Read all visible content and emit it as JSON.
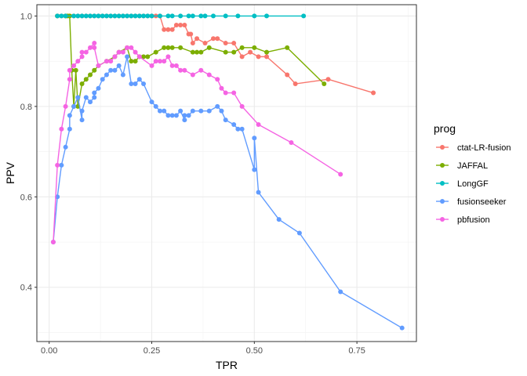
{
  "chart_data": {
    "type": "line",
    "title": "",
    "xlabel": "TPR",
    "ylabel": "PPV",
    "xlim": [
      -0.03,
      0.895
    ],
    "ylim": [
      0.28,
      1.025
    ],
    "x_ticks": [
      0,
      0.25,
      0.5,
      0.75
    ],
    "x_tick_labels": [
      "0.00",
      "0.25",
      "0.50",
      "0.75"
    ],
    "y_ticks": [
      0.4,
      0.6,
      0.8,
      1.0
    ],
    "y_tick_labels": [
      "0.4",
      "0.6",
      "0.8",
      "1.0"
    ],
    "grid": true,
    "legend_title": "prog",
    "legend_position": "right",
    "series": [
      {
        "name": "ctat-LR-fusion",
        "color": "#F8766D",
        "x": [
          0.02,
          0.03,
          0.04,
          0.05,
          0.06,
          0.07,
          0.08,
          0.09,
          0.1,
          0.11,
          0.12,
          0.13,
          0.14,
          0.15,
          0.16,
          0.17,
          0.18,
          0.19,
          0.2,
          0.21,
          0.22,
          0.23,
          0.24,
          0.25,
          0.26,
          0.27,
          0.28,
          0.29,
          0.3,
          0.31,
          0.32,
          0.33,
          0.34,
          0.345,
          0.35,
          0.36,
          0.38,
          0.4,
          0.41,
          0.43,
          0.45,
          0.47,
          0.49,
          0.51,
          0.53,
          0.58,
          0.6,
          0.68,
          0.79
        ],
        "y": [
          1.0,
          1.0,
          1.0,
          1.0,
          1.0,
          1.0,
          1.0,
          1.0,
          1.0,
          1.0,
          1.0,
          1.0,
          1.0,
          1.0,
          1.0,
          1.0,
          1.0,
          1.0,
          1.0,
          1.0,
          1.0,
          1.0,
          1.0,
          1.0,
          1.0,
          1.0,
          0.97,
          0.97,
          0.97,
          0.98,
          0.98,
          0.98,
          0.96,
          0.96,
          0.94,
          0.95,
          0.94,
          0.95,
          0.95,
          0.94,
          0.94,
          0.91,
          0.92,
          0.91,
          0.91,
          0.87,
          0.85,
          0.86,
          0.83
        ]
      },
      {
        "name": "JAFFAL",
        "color": "#7CAE00",
        "x": [
          0.02,
          0.04,
          0.045,
          0.05,
          0.055,
          0.06,
          0.065,
          0.07,
          0.08,
          0.09,
          0.1,
          0.11,
          0.12,
          0.14,
          0.16,
          0.17,
          0.19,
          0.2,
          0.21,
          0.22,
          0.23,
          0.24,
          0.26,
          0.28,
          0.29,
          0.3,
          0.32,
          0.35,
          0.36,
          0.37,
          0.39,
          0.43,
          0.45,
          0.47,
          0.5,
          0.53,
          0.58,
          0.67
        ],
        "y": [
          1.0,
          1.0,
          1.0,
          1.0,
          0.88,
          0.8,
          0.88,
          0.8,
          0.85,
          0.86,
          0.87,
          0.88,
          0.89,
          0.9,
          0.91,
          0.92,
          0.93,
          0.9,
          0.9,
          0.91,
          0.91,
          0.91,
          0.92,
          0.93,
          0.93,
          0.93,
          0.93,
          0.92,
          0.92,
          0.92,
          0.93,
          0.92,
          0.92,
          0.93,
          0.93,
          0.92,
          0.93,
          0.85
        ]
      },
      {
        "name": "LongGF",
        "color": "#00BFC4",
        "x": [
          0.02,
          0.03,
          0.04,
          0.06,
          0.07,
          0.08,
          0.09,
          0.1,
          0.11,
          0.12,
          0.13,
          0.14,
          0.15,
          0.16,
          0.17,
          0.18,
          0.19,
          0.2,
          0.21,
          0.22,
          0.23,
          0.24,
          0.25,
          0.27,
          0.29,
          0.3,
          0.32,
          0.34,
          0.35,
          0.37,
          0.38,
          0.4,
          0.43,
          0.46,
          0.5,
          0.53,
          0.62
        ],
        "y": [
          1.0,
          1.0,
          1.0,
          1.0,
          1.0,
          1.0,
          1.0,
          1.0,
          1.0,
          1.0,
          1.0,
          1.0,
          1.0,
          1.0,
          1.0,
          1.0,
          1.0,
          1.0,
          1.0,
          1.0,
          1.0,
          1.0,
          1.0,
          1.0,
          1.0,
          1.0,
          1.0,
          1.0,
          1.0,
          1.0,
          1.0,
          1.0,
          1.0,
          1.0,
          1.0,
          1.0,
          1.0
        ]
      },
      {
        "name": "fusionseeker",
        "color": "#619CFF",
        "x": [
          0.01,
          0.02,
          0.03,
          0.04,
          0.05,
          0.05,
          0.06,
          0.07,
          0.08,
          0.08,
          0.09,
          0.1,
          0.11,
          0.11,
          0.12,
          0.13,
          0.14,
          0.15,
          0.16,
          0.17,
          0.18,
          0.19,
          0.2,
          0.21,
          0.22,
          0.23,
          0.25,
          0.26,
          0.27,
          0.28,
          0.29,
          0.3,
          0.31,
          0.32,
          0.33,
          0.33,
          0.34,
          0.35,
          0.37,
          0.39,
          0.41,
          0.42,
          0.43,
          0.45,
          0.46,
          0.47,
          0.5,
          0.5,
          0.51,
          0.56,
          0.61,
          0.71,
          0.86
        ],
        "y": [
          0.5,
          0.6,
          0.67,
          0.71,
          0.75,
          0.78,
          0.8,
          0.82,
          0.77,
          0.79,
          0.82,
          0.81,
          0.82,
          0.83,
          0.84,
          0.86,
          0.87,
          0.88,
          0.88,
          0.89,
          0.87,
          0.91,
          0.85,
          0.85,
          0.86,
          0.85,
          0.81,
          0.8,
          0.79,
          0.79,
          0.78,
          0.78,
          0.78,
          0.79,
          0.77,
          0.78,
          0.78,
          0.79,
          0.79,
          0.79,
          0.8,
          0.79,
          0.77,
          0.76,
          0.75,
          0.75,
          0.66,
          0.73,
          0.61,
          0.55,
          0.52,
          0.39,
          0.31
        ]
      },
      {
        "name": "pbfusion",
        "color": "#F564E3",
        "x": [
          0.01,
          0.02,
          0.03,
          0.04,
          0.05,
          0.05,
          0.06,
          0.07,
          0.08,
          0.08,
          0.09,
          0.1,
          0.11,
          0.11,
          0.12,
          0.14,
          0.15,
          0.16,
          0.17,
          0.18,
          0.19,
          0.2,
          0.21,
          0.22,
          0.25,
          0.26,
          0.27,
          0.28,
          0.29,
          0.3,
          0.31,
          0.32,
          0.33,
          0.35,
          0.37,
          0.39,
          0.41,
          0.42,
          0.43,
          0.45,
          0.47,
          0.51,
          0.59,
          0.71
        ],
        "y": [
          0.5,
          0.67,
          0.75,
          0.8,
          0.86,
          0.88,
          0.89,
          0.9,
          0.91,
          0.92,
          0.92,
          0.93,
          0.94,
          0.93,
          0.89,
          0.9,
          0.9,
          0.91,
          0.92,
          0.92,
          0.93,
          0.93,
          0.92,
          0.91,
          0.89,
          0.9,
          0.9,
          0.9,
          0.91,
          0.89,
          0.89,
          0.88,
          0.88,
          0.87,
          0.88,
          0.87,
          0.86,
          0.84,
          0.83,
          0.83,
          0.8,
          0.76,
          0.72,
          0.65
        ]
      }
    ]
  }
}
